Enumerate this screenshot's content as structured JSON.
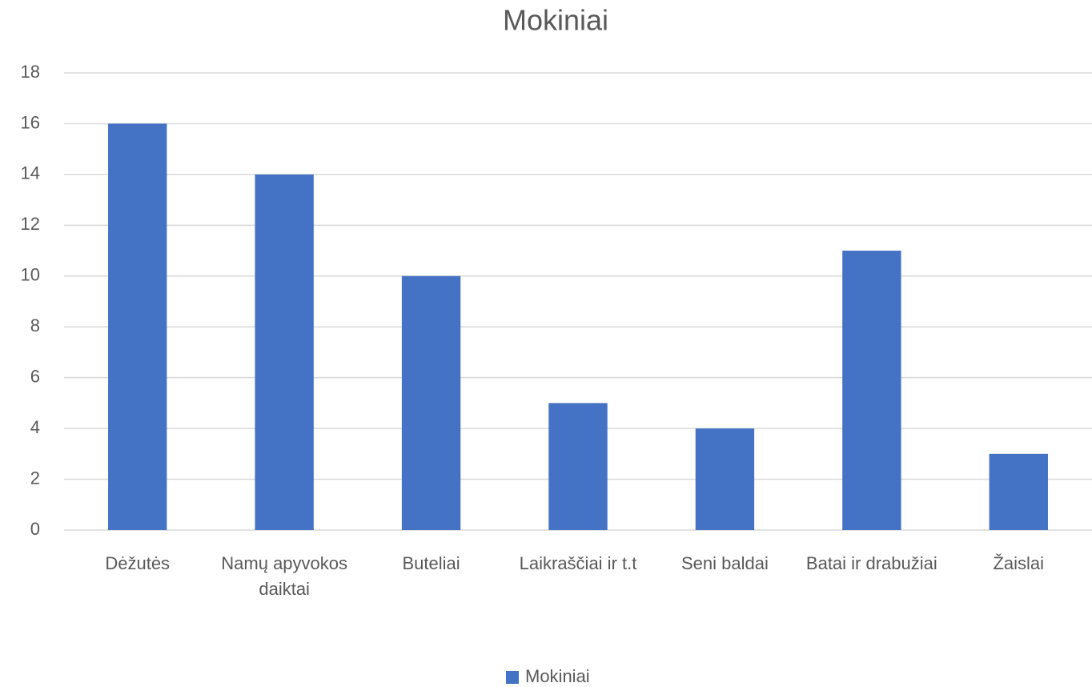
{
  "chart_data": {
    "type": "bar",
    "title": "Mokiniai",
    "categories": [
      "Dėžutės",
      "Namų apyvokos daiktai",
      "Buteliai",
      "Laikraščiai ir t.t",
      "Seni baldai",
      "Batai ir drabužiai",
      "Žaislai"
    ],
    "series": [
      {
        "name": "Mokiniai",
        "color": "#4472c4",
        "values": [
          16,
          14,
          10,
          5,
          4,
          11,
          3
        ]
      }
    ],
    "ylim": [
      0,
      18
    ],
    "yticks": [
      0,
      2,
      4,
      6,
      8,
      10,
      12,
      14,
      16,
      18
    ],
    "grid": true,
    "legend": "bottom"
  }
}
